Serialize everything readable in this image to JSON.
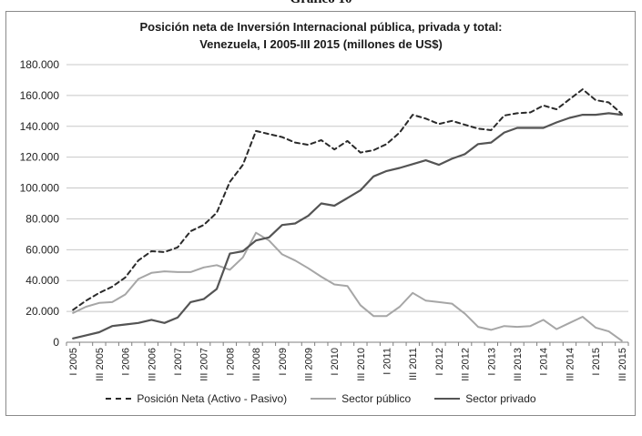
{
  "heading": "Gráfico 10",
  "colors": {
    "Posición Neta (Activo - Pasivo)": "#2a2a2a",
    "Sector público": "#a6a6a6",
    "Sector privado": "#545454",
    "grid": "#c8c8c8",
    "axis": "#7f7f7f"
  },
  "chart_data": {
    "type": "line",
    "title_line1": "Posición neta de Inversión Internacional pública, privada y total:",
    "title_line2": "Venezuela, I 2005-III 2015 (millones de US$)",
    "xlabel": "",
    "ylabel": "",
    "ylim": [
      0,
      180000
    ],
    "yticks": [
      "0",
      "20.000",
      "40.000",
      "60.000",
      "80.000",
      "100.000",
      "120.000",
      "140.000",
      "160.000",
      "180.000"
    ],
    "xtick_labels": [
      "I 2005",
      "III 2005",
      "I 2006",
      "III 2006",
      "I 2007",
      "III 2007",
      "I 2008",
      "III 2008",
      "I 2009",
      "III 2009",
      "I 2010",
      "III 2010",
      "I 2011",
      "III 2011",
      "I 2012",
      "III 2012",
      "I 2013",
      "III 2013",
      "I 2014",
      "III 2014",
      "I 2015",
      "III 2015"
    ],
    "x": [
      "I 2005",
      "II 2005",
      "III 2005",
      "IV 2005",
      "I 2006",
      "II 2006",
      "III 2006",
      "IV 2006",
      "I 2007",
      "II 2007",
      "III 2007",
      "IV 2007",
      "I 2008",
      "II 2008",
      "III 2008",
      "IV 2008",
      "I 2009",
      "II 2009",
      "III 2009",
      "IV 2009",
      "I 2010",
      "II 2010",
      "III 2010",
      "IV 2010",
      "I 2011",
      "II 2011",
      "III 2011",
      "IV 2011",
      "I 2012",
      "II 2012",
      "III 2012",
      "IV 2012",
      "I 2013",
      "II 2013",
      "III 2013",
      "IV 2013",
      "I 2014",
      "II 2014",
      "III 2014",
      "IV 2014",
      "I 2015",
      "II 2015",
      "III 2015"
    ],
    "grid": true,
    "legend_position": "bottom",
    "series": [
      {
        "name": "Posición Neta (Activo - Pasivo)",
        "style": "dashed",
        "values": [
          21000,
          27000,
          32000,
          36000,
          42000,
          53000,
          59000,
          58500,
          61500,
          72000,
          76000,
          84000,
          104000,
          115000,
          137000,
          135000,
          133000,
          129500,
          128000,
          131000,
          125000,
          130500,
          123000,
          124500,
          128500,
          136000,
          147500,
          145000,
          141500,
          143500,
          141000,
          138500,
          137500,
          147000,
          148500,
          149000,
          153500,
          151000,
          157500,
          164000,
          157000,
          155500,
          148000
        ]
      },
      {
        "name": "Sector público",
        "style": "solid",
        "values": [
          19000,
          23000,
          25500,
          26000,
          31000,
          41000,
          45000,
          46000,
          45500,
          45500,
          48500,
          50000,
          47000,
          55000,
          71000,
          66000,
          57000,
          53000,
          48000,
          42500,
          37500,
          36500,
          24000,
          17000,
          17000,
          23000,
          32000,
          27000,
          26000,
          25000,
          18500,
          10000,
          8000,
          10500,
          10000,
          10500,
          14500,
          8500,
          12500,
          16500,
          9500,
          7000,
          1000
        ]
      },
      {
        "name": "Sector privado",
        "style": "solid",
        "values": [
          2500,
          4500,
          6500,
          10500,
          11500,
          12500,
          14500,
          12500,
          16000,
          26000,
          28000,
          34500,
          57500,
          59000,
          66000,
          68000,
          76000,
          77000,
          82000,
          90000,
          88500,
          93500,
          98500,
          107500,
          111000,
          113000,
          115500,
          118000,
          115000,
          119000,
          122000,
          128500,
          129500,
          136000,
          139000,
          139000,
          139000,
          142500,
          145500,
          147500,
          147500,
          148500,
          147500
        ]
      }
    ]
  }
}
